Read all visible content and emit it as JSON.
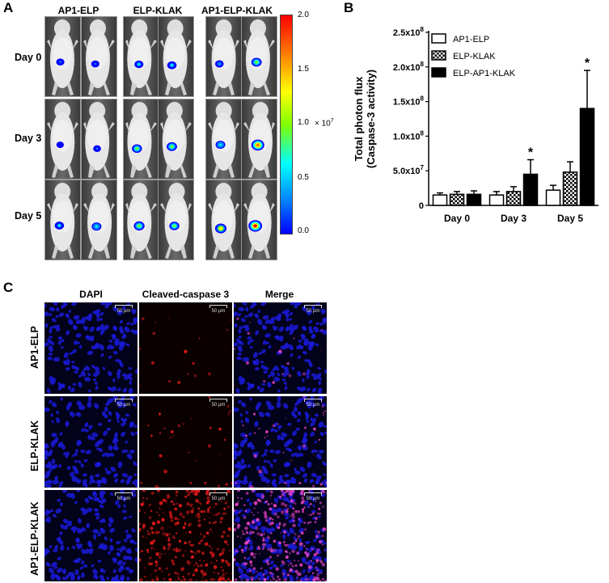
{
  "panelA": {
    "letter": "A",
    "columns": [
      "AP1-ELP",
      "ELP-KLAK",
      "AP1-ELP-KLAK"
    ],
    "rows": [
      "Day 0",
      "Day 3",
      "Day 5"
    ],
    "colorbar": {
      "ticks": [
        "2.0",
        "1.5",
        "1.0",
        "0.5",
        "0.0"
      ],
      "unit_prefix": "× 10",
      "unit_exp": "7",
      "min": 0,
      "max": 2.0
    },
    "signal_levels": [
      [
        [
          0.5,
          0.5
        ],
        [
          0.7,
          0.8
        ],
        [
          0.6,
          1.1
        ]
      ],
      [
        [
          0.3,
          0.4
        ],
        [
          1.0,
          1.1
        ],
        [
          0.9,
          1.8
        ]
      ],
      [
        [
          0.8,
          0.9
        ],
        [
          1.2,
          1.0
        ],
        [
          1.4,
          2.0
        ]
      ]
    ]
  },
  "panelB": {
    "letter": "B",
    "chart_data": {
      "type": "bar",
      "ylabel_line1": "Total photon flux",
      "ylabel_line2": "(Caspase-3 activity)",
      "categories": [
        "Day 0",
        "Day 3",
        "Day 5"
      ],
      "ylim": [
        0,
        250000000
      ],
      "yticks": [
        {
          "value": 0,
          "mant": "0",
          "exp": ""
        },
        {
          "value": 50000000,
          "mant": "5.0x10",
          "exp": "7"
        },
        {
          "value": 100000000,
          "mant": "1.0x10",
          "exp": "8"
        },
        {
          "value": 150000000,
          "mant": "1.5x10",
          "exp": "8"
        },
        {
          "value": 200000000,
          "mant": "2.0x10",
          "exp": "8"
        },
        {
          "value": 250000000,
          "mant": "2.5x10",
          "exp": "8"
        }
      ],
      "series": [
        {
          "name": "AP1-ELP",
          "pattern": "white",
          "values": [
            15000000,
            15000000,
            22000000
          ],
          "errors": [
            3000000,
            5000000,
            7000000
          ]
        },
        {
          "name": "ELP-KLAK",
          "pattern": "checker",
          "values": [
            16000000,
            20000000,
            48000000
          ],
          "errors": [
            4000000,
            7000000,
            15000000
          ]
        },
        {
          "name": "ELP-AP1-KLAK",
          "pattern": "black",
          "values": [
            16000000,
            45000000,
            140000000
          ],
          "errors": [
            5000000,
            21000000,
            55000000
          ]
        }
      ],
      "annotations": [
        {
          "category": "Day 3",
          "series": "ELP-AP1-KLAK",
          "text": "*"
        },
        {
          "category": "Day 5",
          "series": "ELP-AP1-KLAK",
          "text": "*"
        }
      ],
      "legend_position": "top-right"
    }
  },
  "panelC": {
    "letter": "C",
    "columns": [
      "DAPI",
      "Cleaved-caspase 3",
      "Merge"
    ],
    "rows": [
      "AP1-ELP",
      "ELP-KLAK",
      "AP1-ELP-KLAK"
    ],
    "scale_label": "50 µm",
    "caspase_intensity": [
      0.05,
      0.1,
      0.9
    ]
  }
}
